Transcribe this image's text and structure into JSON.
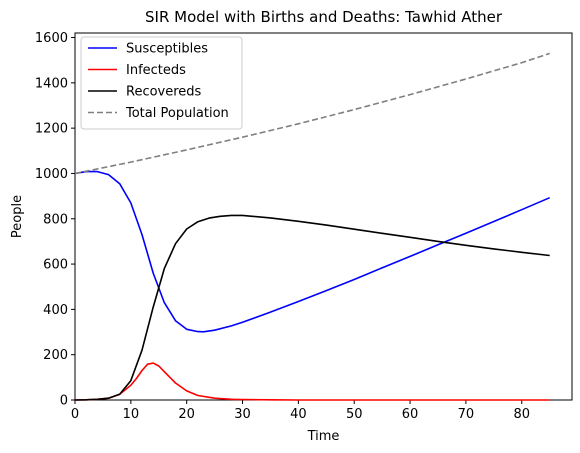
{
  "chart_data": {
    "type": "line",
    "title": "SIR Model with Births and Deaths: Tawhid Ather",
    "xlabel": "Time",
    "ylabel": "People",
    "xlim": [
      0,
      89
    ],
    "ylim": [
      0,
      1620
    ],
    "xticks": [
      0,
      10,
      20,
      30,
      40,
      50,
      60,
      70,
      80
    ],
    "yticks": [
      0,
      200,
      400,
      600,
      800,
      1000,
      1200,
      1400,
      1600
    ],
    "grid": false,
    "legend": "top-left",
    "series": [
      {
        "name": "Susceptibles",
        "color": "#0000ff",
        "dash": "solid",
        "x": [
          0,
          2,
          4,
          6,
          8,
          10,
          12,
          14,
          16,
          18,
          20,
          22,
          23,
          25,
          28,
          30,
          35,
          40,
          45,
          50,
          55,
          60,
          65,
          70,
          75,
          80,
          85
        ],
        "y": [
          1000,
          1008,
          1008,
          995,
          955,
          870,
          730,
          560,
          430,
          350,
          312,
          302,
          301,
          308,
          327,
          343,
          388,
          435,
          483,
          532,
          583,
          634,
          685,
          736,
          788,
          840,
          893
        ]
      },
      {
        "name": "Infecteds",
        "color": "#ff0000",
        "dash": "solid",
        "x": [
          0,
          2,
          4,
          6,
          8,
          10,
          11,
          12,
          13,
          14,
          15,
          16,
          18,
          20,
          22,
          25,
          28,
          30,
          35,
          40,
          50,
          60,
          70,
          85
        ],
        "y": [
          0,
          1,
          3,
          8,
          25,
          65,
          95,
          130,
          158,
          163,
          150,
          125,
          75,
          40,
          20,
          8,
          3,
          2,
          1,
          0,
          0,
          0,
          0,
          0
        ]
      },
      {
        "name": "Recovereds",
        "color": "#000000",
        "dash": "solid",
        "x": [
          0,
          2,
          4,
          6,
          8,
          10,
          12,
          14,
          16,
          18,
          20,
          22,
          24,
          26,
          28,
          30,
          35,
          40,
          45,
          50,
          55,
          60,
          65,
          70,
          75,
          80,
          85
        ],
        "y": [
          0,
          1,
          3,
          8,
          25,
          85,
          220,
          410,
          580,
          690,
          755,
          787,
          803,
          811,
          815,
          815,
          804,
          789,
          772,
          754,
          736,
          718,
          700,
          683,
          667,
          652,
          638
        ]
      },
      {
        "name": "Total Population",
        "color": "#808080",
        "dash": "dashed",
        "x": [
          0,
          10,
          20,
          30,
          40,
          50,
          60,
          70,
          80,
          85
        ],
        "y": [
          1000,
          1050,
          1104,
          1160,
          1219,
          1282,
          1348,
          1417,
          1489,
          1530
        ]
      }
    ]
  }
}
